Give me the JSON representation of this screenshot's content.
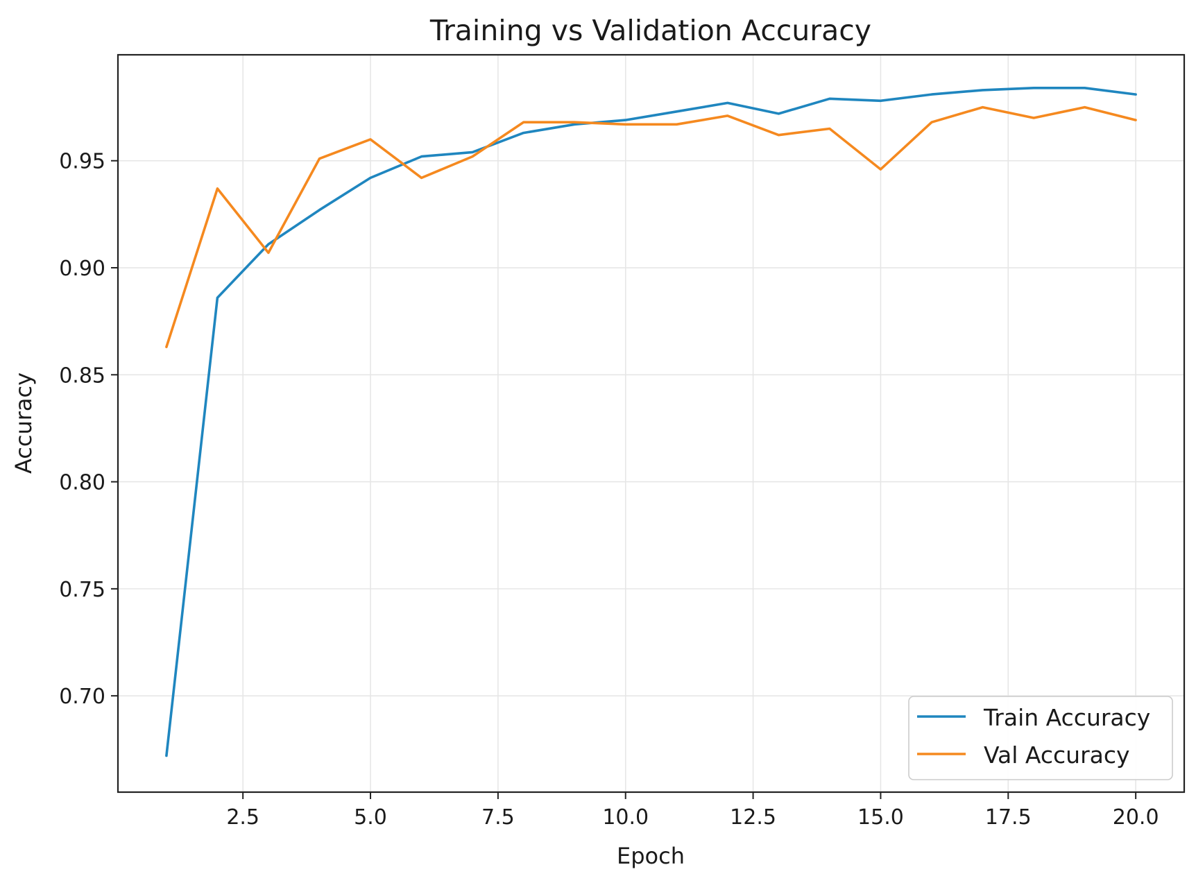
{
  "chart_data": {
    "type": "line",
    "title": "Training vs Validation Accuracy",
    "xlabel": "Epoch",
    "ylabel": "Accuracy",
    "xlim": [
      0.05,
      20.95
    ],
    "ylim": [
      0.655,
      0.9995
    ],
    "x_ticks": [
      2.5,
      5.0,
      7.5,
      10.0,
      12.5,
      15.0,
      17.5,
      20.0
    ],
    "x_tick_labels": [
      "2.5",
      "5.0",
      "7.5",
      "10.0",
      "12.5",
      "15.0",
      "17.5",
      "20.0"
    ],
    "y_ticks": [
      0.7,
      0.75,
      0.8,
      0.85,
      0.9,
      0.95
    ],
    "y_tick_labels": [
      "0.70",
      "0.75",
      "0.80",
      "0.85",
      "0.90",
      "0.95"
    ],
    "grid": true,
    "legend_position": "lower-right",
    "x": [
      1,
      2,
      3,
      4,
      5,
      6,
      7,
      8,
      9,
      10,
      11,
      12,
      13,
      14,
      15,
      16,
      17,
      18,
      19,
      20
    ],
    "series": [
      {
        "name": "Train Accuracy",
        "color": "#1f86bf",
        "values": [
          0.672,
          0.886,
          0.911,
          0.927,
          0.942,
          0.952,
          0.954,
          0.963,
          0.967,
          0.969,
          0.973,
          0.977,
          0.972,
          0.979,
          0.978,
          0.981,
          0.983,
          0.984,
          0.984,
          0.981
        ]
      },
      {
        "name": "Val Accuracy",
        "color": "#f5891f",
        "values": [
          0.863,
          0.937,
          0.907,
          0.951,
          0.96,
          0.942,
          0.952,
          0.968,
          0.968,
          0.967,
          0.967,
          0.971,
          0.962,
          0.965,
          0.946,
          0.968,
          0.975,
          0.97,
          0.975,
          0.969
        ]
      }
    ]
  }
}
